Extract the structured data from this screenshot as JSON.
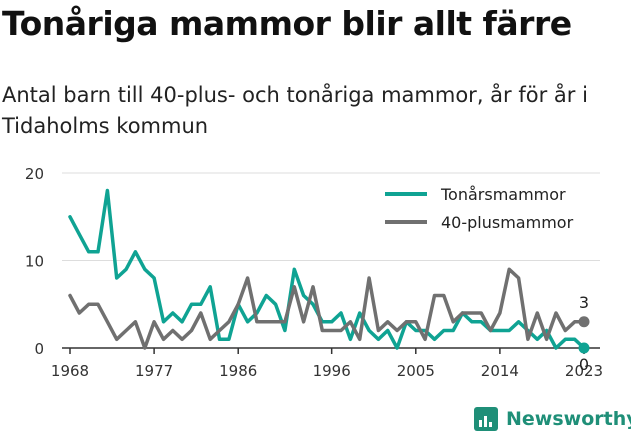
{
  "title": "Tonåriga mammor blir allt färre",
  "subtitle": "Antal barn till 40-plus- och tonåriga mammor, år för år i Tidaholms kommun",
  "brand": "Newsworthy",
  "colors": {
    "teen": "#0fa393",
    "forty": "#707070",
    "axis": "#333333",
    "grid": "#dddddd"
  },
  "chart_data": {
    "type": "line",
    "title": "Tonåriga mammor blir allt färre",
    "xlabel": "",
    "ylabel": "",
    "xlim": [
      1968,
      2023
    ],
    "ylim": [
      0,
      20
    ],
    "x_ticks": [
      1968,
      1977,
      1986,
      1996,
      2005,
      2014,
      2023
    ],
    "y_ticks": [
      0,
      10,
      20
    ],
    "legend": "top-right",
    "x": [
      1968,
      1969,
      1970,
      1971,
      1972,
      1973,
      1974,
      1975,
      1976,
      1977,
      1978,
      1979,
      1980,
      1981,
      1982,
      1983,
      1984,
      1985,
      1986,
      1987,
      1988,
      1989,
      1990,
      1991,
      1992,
      1993,
      1994,
      1995,
      1996,
      1997,
      1998,
      1999,
      2000,
      2001,
      2002,
      2003,
      2004,
      2005,
      2006,
      2007,
      2008,
      2009,
      2010,
      2011,
      2012,
      2013,
      2014,
      2015,
      2016,
      2017,
      2018,
      2019,
      2020,
      2021,
      2022,
      2023
    ],
    "series": [
      {
        "name": "Tonårsmammor",
        "color": "#0fa393",
        "values": [
          15,
          13,
          11,
          11,
          18,
          8,
          9,
          11,
          9,
          8,
          3,
          4,
          3,
          5,
          5,
          7,
          1,
          1,
          5,
          3,
          4,
          6,
          5,
          2,
          9,
          6,
          5,
          3,
          3,
          4,
          1,
          4,
          2,
          1,
          2,
          0,
          3,
          2,
          2,
          1,
          2,
          2,
          4,
          3,
          3,
          2,
          2,
          2,
          3,
          2,
          1,
          2,
          0,
          1,
          1,
          0
        ],
        "end_label": "0"
      },
      {
        "name": "40-plusmammor",
        "color": "#707070",
        "values": [
          6,
          4,
          5,
          5,
          3,
          1,
          2,
          3,
          0,
          3,
          1,
          2,
          1,
          2,
          4,
          1,
          2,
          3,
          5,
          8,
          3,
          3,
          3,
          3,
          7,
          3,
          7,
          2,
          2,
          2,
          3,
          1,
          8,
          2,
          3,
          2,
          3,
          3,
          1,
          6,
          6,
          3,
          4,
          4,
          4,
          2,
          4,
          9,
          8,
          1,
          4,
          1,
          4,
          2,
          3,
          3
        ],
        "end_label": "3"
      }
    ]
  }
}
